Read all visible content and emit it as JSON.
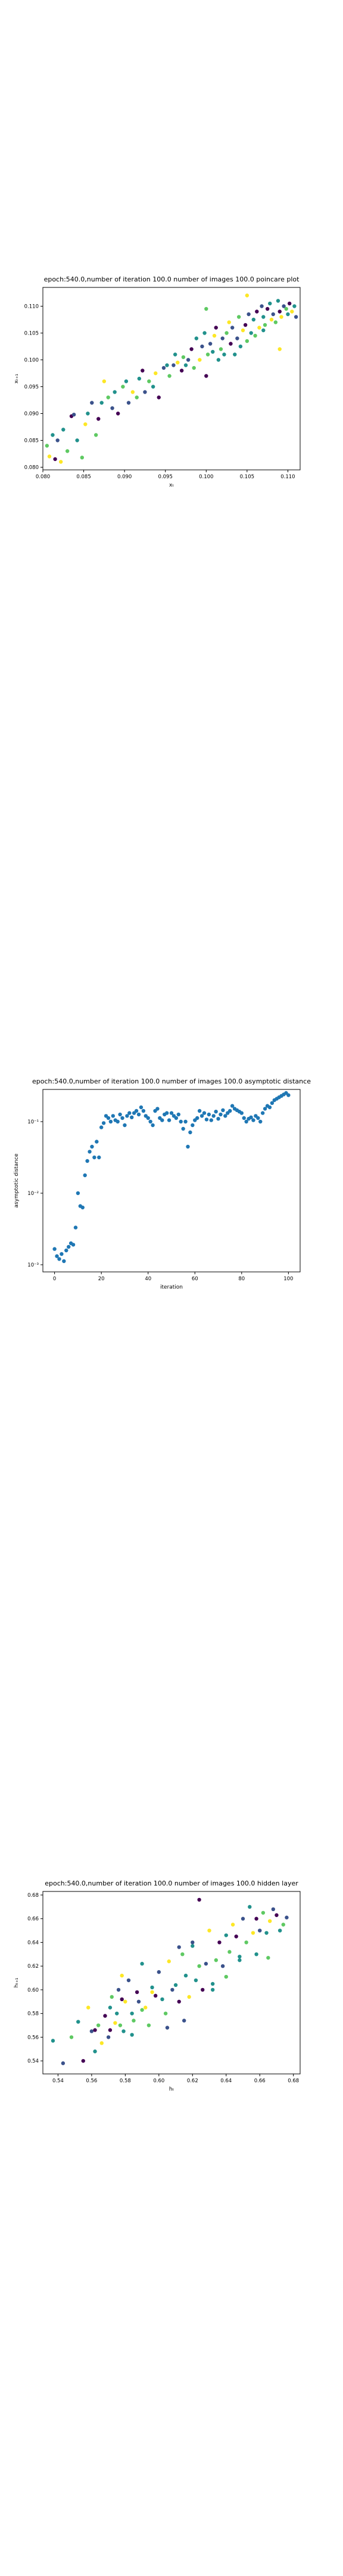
{
  "colors": {
    "viridis": [
      "#440154",
      "#3b528b",
      "#21918c",
      "#5ec962",
      "#fde725"
    ]
  },
  "chart_data": [
    {
      "type": "scatter",
      "title": "epoch:540.0,number of iteration 100.0 number of images 100.0 poincare plot",
      "xlabel": "xₜ",
      "ylabel": "xₜ₊₁",
      "xlim": [
        0.08,
        0.1115
      ],
      "ylim": [
        0.0795,
        0.1135
      ],
      "xticks": [
        "0.080",
        "0.085",
        "0.090",
        "0.095",
        "0.100",
        "0.105",
        "0.110"
      ],
      "xtickvals": [
        0.08,
        0.085,
        0.09,
        0.095,
        0.1,
        0.105,
        0.11
      ],
      "yticks": [
        "0.080",
        "0.085",
        "0.090",
        "0.095",
        "0.100",
        "0.105",
        "0.110"
      ],
      "ytickvals": [
        0.08,
        0.085,
        0.09,
        0.095,
        0.1,
        0.105,
        0.11
      ],
      "colormap": "viridis",
      "x": [
        0.0805,
        0.0808,
        0.0812,
        0.0815,
        0.0818,
        0.0822,
        0.0825,
        0.083,
        0.0835,
        0.0838,
        0.0842,
        0.0848,
        0.0852,
        0.0855,
        0.086,
        0.0865,
        0.0868,
        0.0872,
        0.0875,
        0.088,
        0.0885,
        0.0888,
        0.0892,
        0.0898,
        0.0902,
        0.0905,
        0.091,
        0.0915,
        0.0918,
        0.0922,
        0.0925,
        0.093,
        0.0935,
        0.0938,
        0.0942,
        0.0948,
        0.0952,
        0.0955,
        0.096,
        0.0962,
        0.0965,
        0.097,
        0.0972,
        0.0975,
        0.0978,
        0.0982,
        0.0985,
        0.0988,
        0.0992,
        0.0995,
        0.0998,
        0.1,
        0.1002,
        0.1005,
        0.1008,
        0.101,
        0.1012,
        0.1015,
        0.1018,
        0.102,
        0.1022,
        0.1025,
        0.1028,
        0.103,
        0.1032,
        0.1035,
        0.1038,
        0.104,
        0.1042,
        0.1045,
        0.1048,
        0.105,
        0.1052,
        0.1055,
        0.1058,
        0.106,
        0.1062,
        0.1065,
        0.1068,
        0.107,
        0.1072,
        0.1075,
        0.1078,
        0.108,
        0.1082,
        0.1085,
        0.1088,
        0.109,
        0.1092,
        0.1095,
        0.1098,
        0.11,
        0.1102,
        0.1105,
        0.1108,
        0.111,
        0.109,
        0.107,
        0.105,
        0.1
      ],
      "y": [
        0.084,
        0.082,
        0.086,
        0.0815,
        0.085,
        0.081,
        0.087,
        0.083,
        0.0895,
        0.0898,
        0.085,
        0.0818,
        0.088,
        0.09,
        0.092,
        0.086,
        0.089,
        0.092,
        0.096,
        0.093,
        0.091,
        0.094,
        0.09,
        0.095,
        0.096,
        0.092,
        0.094,
        0.093,
        0.0965,
        0.098,
        0.094,
        0.096,
        0.095,
        0.0975,
        0.093,
        0.0985,
        0.099,
        0.097,
        0.099,
        0.101,
        0.0995,
        0.098,
        0.1005,
        0.099,
        0.1,
        0.102,
        0.0985,
        0.104,
        0.1,
        0.1025,
        0.105,
        0.097,
        0.101,
        0.103,
        0.1015,
        0.1045,
        0.106,
        0.1,
        0.102,
        0.104,
        0.101,
        0.105,
        0.107,
        0.103,
        0.106,
        0.101,
        0.104,
        0.108,
        0.1025,
        0.1055,
        0.1065,
        0.1035,
        0.1085,
        0.105,
        0.1075,
        0.1045,
        0.109,
        0.106,
        0.11,
        0.108,
        0.1065,
        0.1095,
        0.1105,
        0.1075,
        0.1085,
        0.107,
        0.111,
        0.109,
        0.108,
        0.11,
        0.1095,
        0.1085,
        0.1105,
        0.109,
        0.11,
        0.108,
        0.102,
        0.1055,
        0.112,
        0.1095
      ],
      "c": [
        3,
        4,
        2,
        0,
        1,
        4,
        2,
        3,
        0,
        1,
        2,
        3,
        4,
        2,
        1,
        3,
        0,
        2,
        4,
        3,
        1,
        2,
        0,
        3,
        2,
        1,
        4,
        3,
        2,
        0,
        1,
        3,
        2,
        4,
        0,
        1,
        2,
        3,
        1,
        2,
        4,
        0,
        3,
        2,
        1,
        0,
        3,
        2,
        4,
        1,
        2,
        0,
        3,
        1,
        2,
        4,
        0,
        2,
        3,
        1,
        2,
        3,
        4,
        0,
        1,
        2,
        1,
        3,
        2,
        4,
        0,
        3,
        1,
        2,
        2,
        3,
        0,
        4,
        1,
        2,
        3,
        0,
        2,
        4,
        1,
        3,
        2,
        0,
        4,
        1,
        3,
        2,
        0,
        4,
        2,
        1,
        4,
        2,
        4,
        3
      ]
    },
    {
      "type": "scatter",
      "title": "epoch:540.0,number of iteration 100.0  number of images 100.0 asymptotic distance",
      "xlabel": "iteration",
      "ylabel": "asymptotic distance",
      "xlim": [
        -5,
        105
      ],
      "yscale": "log",
      "ylim_log10": [
        -3.1,
        -0.55
      ],
      "xticks": [
        "0",
        "20",
        "40",
        "60",
        "80",
        "100"
      ],
      "xtickvals": [
        0,
        20,
        40,
        60,
        80,
        100
      ],
      "yticks": [
        "10⁻³",
        "10⁻²",
        "10⁻¹"
      ],
      "ytickvals_log10": [
        -3,
        -2,
        -1
      ],
      "color": "#1f77b4",
      "log10_values": [
        -2.78,
        -2.88,
        -2.92,
        -2.85,
        -2.95,
        -2.8,
        -2.75,
        -2.7,
        -2.72,
        -2.48,
        -2.0,
        -2.18,
        -2.2,
        -1.75,
        -1.55,
        -1.42,
        -1.35,
        -1.5,
        -1.28,
        -1.5,
        -1.08,
        -1.02,
        -0.92,
        -0.95,
        -1.0,
        -0.92,
        -0.98,
        -1.0,
        -0.9,
        -0.95,
        -1.05,
        -0.92,
        -0.88,
        -0.94,
        -0.88,
        -0.85,
        -0.9,
        -0.8,
        -0.85,
        -0.92,
        -0.95,
        -1.0,
        -1.05,
        -0.85,
        -0.82,
        -0.95,
        -0.98,
        -0.9,
        -0.88,
        -0.98,
        -0.88,
        -0.92,
        -0.95,
        -0.9,
        -1.0,
        -1.1,
        -1.0,
        -1.35,
        -1.15,
        -1.05,
        -0.98,
        -0.95,
        -0.85,
        -0.92,
        -0.88,
        -0.97,
        -0.9,
        -0.98,
        -0.92,
        -0.86,
        -0.96,
        -0.9,
        -0.84,
        -0.92,
        -0.88,
        -0.85,
        -0.78,
        -0.82,
        -0.84,
        -0.86,
        -0.88,
        -0.95,
        -1.0,
        -0.96,
        -0.94,
        -0.98,
        -0.92,
        -0.95,
        -1.0,
        -0.88,
        -0.82,
        -0.78,
        -0.8,
        -0.74,
        -0.7,
        -0.68,
        -0.66,
        -0.64,
        -0.62,
        -0.6,
        -0.63
      ]
    },
    {
      "type": "scatter",
      "title": "epoch:540.0,number of iteration 100.0  number of images 100.0 hidden layer",
      "xlabel": "hₜ",
      "ylabel": "hₜ₊₁",
      "xlim": [
        0.531,
        0.684
      ],
      "ylim": [
        0.529,
        0.683
      ],
      "xticks": [
        "0.54",
        "0.56",
        "0.58",
        "0.60",
        "0.62",
        "0.64",
        "0.66",
        "0.68"
      ],
      "xtickvals": [
        0.54,
        0.56,
        0.58,
        0.6,
        0.62,
        0.64,
        0.66,
        0.68
      ],
      "yticks": [
        "0.54",
        "0.56",
        "0.58",
        "0.60",
        "0.62",
        "0.64",
        "0.66",
        "0.68"
      ],
      "ytickvals": [
        0.54,
        0.56,
        0.58,
        0.6,
        0.62,
        0.64,
        0.66,
        0.68
      ],
      "colormap": "viridis",
      "x": [
        0.537,
        0.543,
        0.548,
        0.552,
        0.555,
        0.558,
        0.56,
        0.562,
        0.564,
        0.566,
        0.568,
        0.57,
        0.571,
        0.572,
        0.574,
        0.575,
        0.576,
        0.577,
        0.578,
        0.579,
        0.58,
        0.582,
        0.584,
        0.585,
        0.587,
        0.588,
        0.59,
        0.592,
        0.594,
        0.596,
        0.598,
        0.6,
        0.602,
        0.604,
        0.606,
        0.608,
        0.61,
        0.612,
        0.614,
        0.616,
        0.618,
        0.62,
        0.622,
        0.624,
        0.626,
        0.628,
        0.63,
        0.632,
        0.634,
        0.636,
        0.638,
        0.64,
        0.642,
        0.644,
        0.646,
        0.648,
        0.65,
        0.652,
        0.654,
        0.656,
        0.658,
        0.66,
        0.662,
        0.664,
        0.666,
        0.668,
        0.67,
        0.672,
        0.674,
        0.676,
        0.584,
        0.596,
        0.612,
        0.624,
        0.64,
        0.658,
        0.571,
        0.605,
        0.632,
        0.665,
        0.578,
        0.615,
        0.648,
        0.562,
        0.59,
        0.62
      ],
      "y": [
        0.557,
        0.538,
        0.56,
        0.573,
        0.54,
        0.585,
        0.565,
        0.548,
        0.57,
        0.555,
        0.578,
        0.56,
        0.585,
        0.594,
        0.572,
        0.58,
        0.6,
        0.57,
        0.592,
        0.565,
        0.59,
        0.608,
        0.58,
        0.574,
        0.598,
        0.59,
        0.622,
        0.585,
        0.57,
        0.602,
        0.595,
        0.615,
        0.592,
        0.58,
        0.624,
        0.6,
        0.604,
        0.59,
        0.63,
        0.612,
        0.594,
        0.64,
        0.608,
        0.62,
        0.6,
        0.622,
        0.65,
        0.605,
        0.625,
        0.64,
        0.62,
        0.646,
        0.632,
        0.655,
        0.645,
        0.625,
        0.66,
        0.64,
        0.67,
        0.648,
        0.66,
        0.65,
        0.665,
        0.648,
        0.658,
        0.668,
        0.663,
        0.65,
        0.655,
        0.661,
        0.562,
        0.598,
        0.636,
        0.676,
        0.611,
        0.63,
        0.566,
        0.568,
        0.6,
        0.627,
        0.612,
        0.574,
        0.628,
        0.566,
        0.583,
        0.637
      ],
      "c": [
        2,
        1,
        3,
        2,
        0,
        4,
        1,
        2,
        3,
        4,
        0,
        1,
        2,
        3,
        4,
        2,
        1,
        3,
        0,
        2,
        4,
        1,
        2,
        3,
        0,
        1,
        2,
        4,
        3,
        2,
        0,
        1,
        2,
        3,
        4,
        1,
        2,
        0,
        3,
        2,
        4,
        1,
        2,
        3,
        0,
        1,
        4,
        2,
        3,
        0,
        1,
        2,
        3,
        4,
        0,
        2,
        1,
        3,
        2,
        4,
        0,
        1,
        3,
        2,
        4,
        1,
        0,
        2,
        3,
        1,
        2,
        4,
        1,
        0,
        3,
        2,
        0,
        1,
        2,
        3,
        4,
        1,
        2,
        0,
        3,
        2
      ]
    }
  ]
}
